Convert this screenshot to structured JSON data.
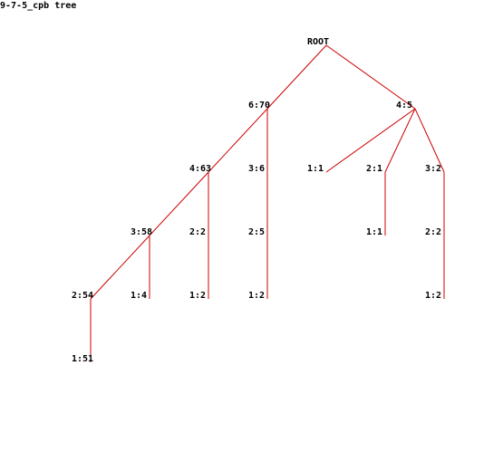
{
  "title": "9-7-5_cpb tree",
  "colors": {
    "edge": "#cc0000",
    "text": "#000000",
    "background": "#ffffff"
  },
  "tree": {
    "nodes": [
      {
        "id": "n-root",
        "label": "ROOT"
      },
      {
        "id": "n-6-70",
        "label": "6:70"
      },
      {
        "id": "n-4-5",
        "label": "4:5"
      },
      {
        "id": "n-4-63",
        "label": "4:63"
      },
      {
        "id": "n-3-6",
        "label": "3:6"
      },
      {
        "id": "n-1-1",
        "label": "1:1"
      },
      {
        "id": "n-2-1",
        "label": "2:1"
      },
      {
        "id": "n-3-2",
        "label": "3:2"
      },
      {
        "id": "n-3-58",
        "label": "3:58"
      },
      {
        "id": "n-2-2a",
        "label": "2:2"
      },
      {
        "id": "n-2-5",
        "label": "2:5"
      },
      {
        "id": "n-1-1b",
        "label": "1:1"
      },
      {
        "id": "n-2-2b",
        "label": "2:2"
      },
      {
        "id": "n-2-54",
        "label": "2:54"
      },
      {
        "id": "n-1-4",
        "label": "1:4"
      },
      {
        "id": "n-1-2a",
        "label": "1:2"
      },
      {
        "id": "n-1-2b",
        "label": "1:2"
      },
      {
        "id": "n-1-2c",
        "label": "1:2"
      },
      {
        "id": "n-1-51",
        "label": "1:51"
      }
    ],
    "edges": [
      [
        "n-root",
        "n-6-70"
      ],
      [
        "n-root",
        "n-4-5"
      ],
      [
        "n-6-70",
        "n-4-63"
      ],
      [
        "n-6-70",
        "n-3-6"
      ],
      [
        "n-4-5",
        "n-1-1"
      ],
      [
        "n-4-5",
        "n-2-1"
      ],
      [
        "n-4-5",
        "n-3-2"
      ],
      [
        "n-4-63",
        "n-3-58"
      ],
      [
        "n-4-63",
        "n-2-2a"
      ],
      [
        "n-3-6",
        "n-2-5"
      ],
      [
        "n-2-1",
        "n-1-1b"
      ],
      [
        "n-3-2",
        "n-2-2b"
      ],
      [
        "n-3-58",
        "n-2-54"
      ],
      [
        "n-3-58",
        "n-1-4"
      ],
      [
        "n-2-2a",
        "n-1-2a"
      ],
      [
        "n-2-5",
        "n-1-2b"
      ],
      [
        "n-2-2b",
        "n-1-2c"
      ],
      [
        "n-2-54",
        "n-1-51"
      ]
    ]
  }
}
